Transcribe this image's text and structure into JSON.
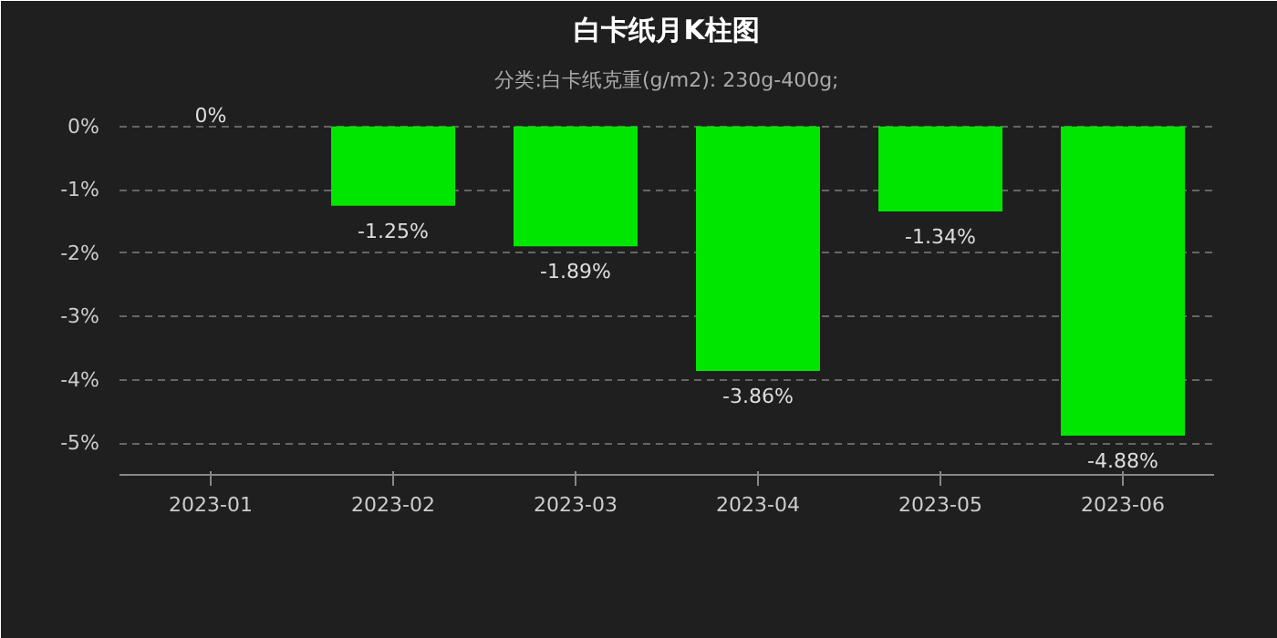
{
  "chart_data": {
    "type": "bar",
    "title": "白卡纸月K柱图",
    "subtitle": "分类:白卡纸克重(g/m2): 230g-400g;",
    "categories": [
      "2023-01",
      "2023-02",
      "2023-03",
      "2023-04",
      "2023-05",
      "2023-06"
    ],
    "values": [
      0,
      -1.25,
      -1.89,
      -3.86,
      -1.34,
      -4.88
    ],
    "value_labels": [
      "0%",
      "-1.25%",
      "-1.89%",
      "-3.86%",
      "-1.34%",
      "-4.88%"
    ],
    "color": "#00e600",
    "ylim": [
      -5,
      0
    ],
    "yticks": [
      {
        "value": 0,
        "label": "0%"
      },
      {
        "value": -1,
        "label": "-1%"
      },
      {
        "value": -2,
        "label": "-2%"
      },
      {
        "value": -3,
        "label": "-3%"
      },
      {
        "value": -4,
        "label": "-4%"
      },
      {
        "value": -5,
        "label": "-5%"
      }
    ],
    "grid": "y"
  }
}
